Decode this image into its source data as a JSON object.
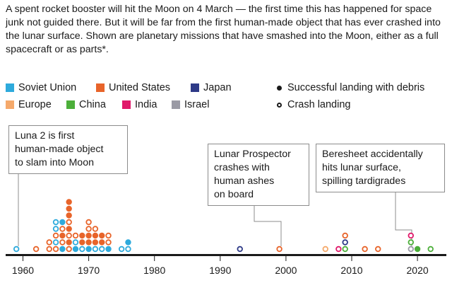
{
  "intro": "A spent rocket booster will hit the Moon on 4 March — the first time this has happened for space junk not guided there. But it will be far from the first human-made object that has ever crashed into the lunar surface. Shown are planetary missions that have smashed into the Moon, either as a full spacecraft or as parts*.",
  "legend": {
    "countries": [
      {
        "name": "Soviet Union",
        "color": "#2eaadc"
      },
      {
        "name": "United States",
        "color": "#e8642a"
      },
      {
        "name": "Japan",
        "color": "#2e3a87"
      },
      {
        "name": "Europe",
        "color": "#f5a96b"
      },
      {
        "name": "China",
        "color": "#4caf3a"
      },
      {
        "name": "India",
        "color": "#e0196a"
      },
      {
        "name": "Israel",
        "color": "#9a9aa5"
      }
    ],
    "types": {
      "filled": "Successful landing with debris",
      "hollow": "Crash landing"
    }
  },
  "annotations": {
    "luna2": "Luna 2 is first human-made object to slam into Moon",
    "luna2_lines": [
      "Luna 2 is first",
      "human-made object",
      "to slam into Moon"
    ],
    "prospector": "Lunar Prospector crashes with human ashes on board",
    "prospector_lines": [
      "Lunar Prospector",
      "crashes with",
      "human ashes",
      "on board"
    ],
    "beresheet": "Beresheet accidentally hits lunar surface, spilling tardigrades",
    "beresheet_lines": [
      "Beresheet accidentally",
      "hits lunar surface,",
      "spilling tardigrades"
    ]
  },
  "chart_data": {
    "type": "scatter",
    "xlim": [
      1957,
      2024
    ],
    "x_ticks": [
      1960,
      1970,
      1980,
      1990,
      2000,
      2010,
      2020
    ],
    "y_meaning": "count of objects stacked per year",
    "points": [
      {
        "year": 1959,
        "country": "Soviet Union",
        "kind": "hollow",
        "level": 0
      },
      {
        "year": 1962,
        "country": "United States",
        "kind": "hollow",
        "level": 0
      },
      {
        "year": 1964,
        "country": "United States",
        "kind": "hollow",
        "level": 0
      },
      {
        "year": 1964,
        "country": "United States",
        "kind": "hollow",
        "level": 1
      },
      {
        "year": 1965,
        "country": "United States",
        "kind": "hollow",
        "level": 0
      },
      {
        "year": 1965,
        "country": "Soviet Union",
        "kind": "hollow",
        "level": 1
      },
      {
        "year": 1965,
        "country": "United States",
        "kind": "hollow",
        "level": 2
      },
      {
        "year": 1965,
        "country": "Soviet Union",
        "kind": "hollow",
        "level": 3
      },
      {
        "year": 1965,
        "country": "Soviet Union",
        "kind": "hollow",
        "level": 4
      },
      {
        "year": 1966,
        "country": "Soviet Union",
        "kind": "filled",
        "level": 0
      },
      {
        "year": 1966,
        "country": "United States",
        "kind": "hollow",
        "level": 1
      },
      {
        "year": 1966,
        "country": "United States",
        "kind": "filled",
        "level": 2
      },
      {
        "year": 1966,
        "country": "United States",
        "kind": "hollow",
        "level": 3
      },
      {
        "year": 1966,
        "country": "Soviet Union",
        "kind": "filled",
        "level": 4
      },
      {
        "year": 1967,
        "country": "United States",
        "kind": "hollow",
        "level": 0
      },
      {
        "year": 1967,
        "country": "United States",
        "kind": "filled",
        "level": 1
      },
      {
        "year": 1967,
        "country": "United States",
        "kind": "hollow",
        "level": 2
      },
      {
        "year": 1967,
        "country": "United States",
        "kind": "filled",
        "level": 3
      },
      {
        "year": 1967,
        "country": "United States",
        "kind": "hollow",
        "level": 4
      },
      {
        "year": 1967,
        "country": "United States",
        "kind": "filled",
        "level": 5
      },
      {
        "year": 1967,
        "country": "United States",
        "kind": "filled",
        "level": 6
      },
      {
        "year": 1967,
        "country": "United States",
        "kind": "filled",
        "level": 7
      },
      {
        "year": 1968,
        "country": "Soviet Union",
        "kind": "filled",
        "level": 0
      },
      {
        "year": 1968,
        "country": "Soviet Union",
        "kind": "hollow",
        "level": 1
      },
      {
        "year": 1968,
        "country": "United States",
        "kind": "hollow",
        "level": 2
      },
      {
        "year": 1969,
        "country": "Soviet Union",
        "kind": "hollow",
        "level": 0
      },
      {
        "year": 1969,
        "country": "United States",
        "kind": "filled",
        "level": 1
      },
      {
        "year": 1969,
        "country": "United States",
        "kind": "filled",
        "level": 2
      },
      {
        "year": 1970,
        "country": "Soviet Union",
        "kind": "filled",
        "level": 0
      },
      {
        "year": 1970,
        "country": "United States",
        "kind": "filled",
        "level": 1
      },
      {
        "year": 1970,
        "country": "United States",
        "kind": "filled",
        "level": 2
      },
      {
        "year": 1970,
        "country": "United States",
        "kind": "hollow",
        "level": 3
      },
      {
        "year": 1970,
        "country": "United States",
        "kind": "hollow",
        "level": 4
      },
      {
        "year": 1971,
        "country": "Soviet Union",
        "kind": "hollow",
        "level": 0
      },
      {
        "year": 1971,
        "country": "United States",
        "kind": "filled",
        "level": 1
      },
      {
        "year": 1971,
        "country": "United States",
        "kind": "filled",
        "level": 2
      },
      {
        "year": 1971,
        "country": "United States",
        "kind": "hollow",
        "level": 3
      },
      {
        "year": 1972,
        "country": "Soviet Union",
        "kind": "hollow",
        "level": 0
      },
      {
        "year": 1972,
        "country": "United States",
        "kind": "filled",
        "level": 1
      },
      {
        "year": 1972,
        "country": "United States",
        "kind": "filled",
        "level": 2
      },
      {
        "year": 1973,
        "country": "Soviet Union",
        "kind": "filled",
        "level": 0
      },
      {
        "year": 1973,
        "country": "United States",
        "kind": "hollow",
        "level": 1
      },
      {
        "year": 1973,
        "country": "United States",
        "kind": "hollow",
        "level": 2
      },
      {
        "year": 1975,
        "country": "Soviet Union",
        "kind": "hollow",
        "level": 0
      },
      {
        "year": 1976,
        "country": "Soviet Union",
        "kind": "hollow",
        "level": 0
      },
      {
        "year": 1976,
        "country": "Soviet Union",
        "kind": "filled",
        "level": 1
      },
      {
        "year": 1993,
        "country": "Japan",
        "kind": "hollow",
        "level": 0
      },
      {
        "year": 1999,
        "country": "United States",
        "kind": "hollow",
        "level": 0
      },
      {
        "year": 2006,
        "country": "Europe",
        "kind": "hollow",
        "level": 0
      },
      {
        "year": 2008,
        "country": "India",
        "kind": "hollow",
        "level": 0
      },
      {
        "year": 2009,
        "country": "China",
        "kind": "hollow",
        "level": 0
      },
      {
        "year": 2009,
        "country": "Japan",
        "kind": "hollow",
        "level": 1
      },
      {
        "year": 2009,
        "country": "United States",
        "kind": "hollow",
        "level": 2
      },
      {
        "year": 2012,
        "country": "United States",
        "kind": "hollow",
        "level": 0
      },
      {
        "year": 2014,
        "country": "United States",
        "kind": "hollow",
        "level": 0
      },
      {
        "year": 2019,
        "country": "Israel",
        "kind": "hollow",
        "level": 0
      },
      {
        "year": 2019,
        "country": "China",
        "kind": "hollow",
        "level": 1
      },
      {
        "year": 2019,
        "country": "India",
        "kind": "hollow",
        "level": 2
      },
      {
        "year": 2020,
        "country": "China",
        "kind": "filled",
        "level": 0
      },
      {
        "year": 2022,
        "country": "China",
        "kind": "hollow",
        "level": 0
      }
    ]
  }
}
